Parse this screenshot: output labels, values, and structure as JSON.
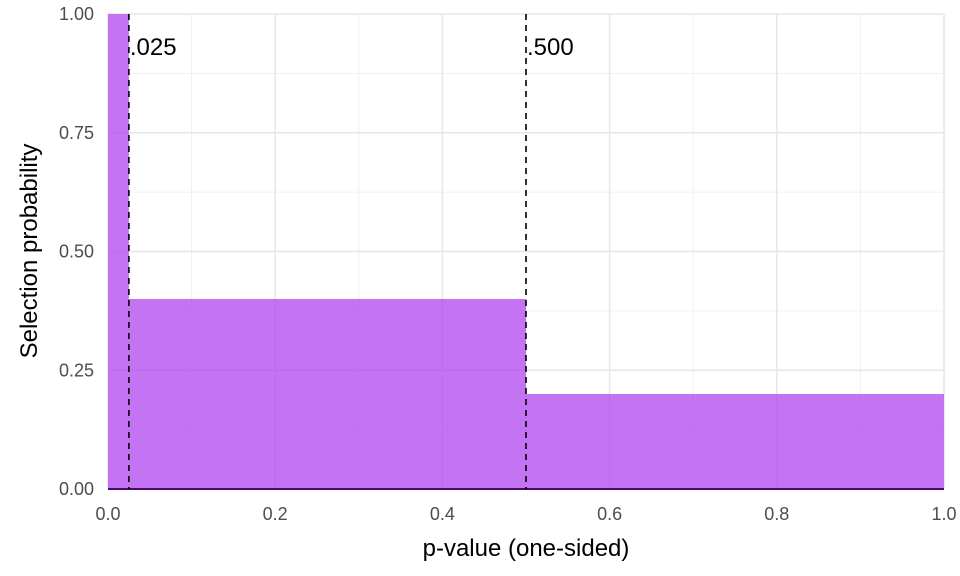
{
  "chart_data": {
    "type": "area",
    "xlabel": "p-value (one-sided)",
    "ylabel": "Selection probability",
    "xlim": [
      0,
      1
    ],
    "ylim": [
      0,
      1
    ],
    "grid": true,
    "x_ticks": [
      0,
      0.2,
      0.4,
      0.6,
      0.8,
      1.0
    ],
    "x_tick_labels": [
      "0.0",
      "0.2",
      "0.4",
      "0.6",
      "0.8",
      "1.0"
    ],
    "y_ticks": [
      0,
      0.25,
      0.5,
      0.75,
      1.0
    ],
    "y_tick_labels": [
      "0.00",
      "0.25",
      "0.50",
      "0.75",
      "1.00"
    ],
    "steps": [
      {
        "x_start": 0,
        "x_end": 0.025,
        "y": 1.0
      },
      {
        "x_start": 0.025,
        "x_end": 0.5,
        "y": 0.4
      },
      {
        "x_start": 0.5,
        "x_end": 1.0,
        "y": 0.2
      }
    ],
    "cutoffs": [
      {
        "x": 0.025,
        "label": ".025"
      },
      {
        "x": 0.5,
        "label": ".500"
      }
    ],
    "fill_color": "#b550f0",
    "baseline_color": "#4b0a6e",
    "cutoff_color": "#000000"
  }
}
